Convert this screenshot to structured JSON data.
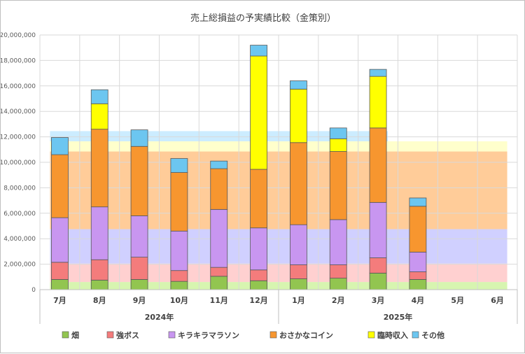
{
  "chart_data": {
    "type": "bar",
    "stacked": true,
    "title": "売上総損益の予実績比較（金策別）",
    "categories": [
      "7月",
      "8月",
      "9月",
      "10月",
      "11月",
      "12月",
      "1月",
      "2月",
      "3月",
      "4月",
      "5月",
      "6月"
    ],
    "year_groups": [
      {
        "label": "2024年",
        "count": 6
      },
      {
        "label": "2025年",
        "count": 6
      }
    ],
    "ylim": [
      0,
      20000000
    ],
    "yticks": [
      "0",
      "2,000,000",
      "4,000,000",
      "6,000,000",
      "8,000,000",
      "10,000,000",
      "12,000,000",
      "14,000,000",
      "16,000,000",
      "18,000,000",
      "20,000,000"
    ],
    "ytick_values": [
      0,
      2000000,
      4000000,
      6000000,
      8000000,
      10000000,
      12000000,
      14000000,
      16000000,
      18000000,
      20000000
    ],
    "grid": true,
    "legend_position": "bottom",
    "series": [
      {
        "name": "畑",
        "color": "#92C550",
        "values": [
          800000,
          750000,
          800000,
          650000,
          1050000,
          700000,
          850000,
          900000,
          1300000,
          800000,
          null,
          null
        ]
      },
      {
        "name": "強ボス",
        "color": "#F47C7C",
        "values": [
          1350000,
          1600000,
          1750000,
          850000,
          700000,
          850000,
          1100000,
          1050000,
          1200000,
          600000,
          null,
          null
        ]
      },
      {
        "name": "キラキラマラソン",
        "color": "#C896F0",
        "values": [
          3500000,
          4150000,
          3250000,
          3100000,
          4550000,
          3300000,
          3150000,
          3550000,
          4350000,
          1550000,
          null,
          null
        ]
      },
      {
        "name": "おさかなコイン",
        "color": "#F7962F",
        "values": [
          4950000,
          6100000,
          5450000,
          4600000,
          3200000,
          4600000,
          6450000,
          5350000,
          5850000,
          3600000,
          null,
          null
        ]
      },
      {
        "name": "臨時収入",
        "color": "#FFFF00",
        "values": [
          0,
          2000000,
          0,
          0,
          0,
          8900000,
          4200000,
          1000000,
          4050000,
          0,
          null,
          null
        ]
      },
      {
        "name": "その他",
        "color": "#6CC6F0",
        "values": [
          1350000,
          1100000,
          1300000,
          1100000,
          600000,
          850000,
          650000,
          850000,
          550000,
          650000,
          null,
          null
        ]
      }
    ],
    "budget_bands": {
      "colors": [
        "#D7F5B0",
        "#FFD0D0",
        "#D0D0FF",
        "#FFCC99",
        "#FFFFCC",
        "#CCECFF"
      ],
      "segments": [
        {
          "from_category": "7月",
          "to_category": "6月",
          "values": [
            600000,
            1450000,
            2700000,
            6100000,
            800000,
            0
          ]
        },
        {
          "from_category": "7月",
          "to_category": "3月",
          "values": [
            0,
            0,
            0,
            0,
            0,
            800000
          ]
        }
      ]
    }
  }
}
